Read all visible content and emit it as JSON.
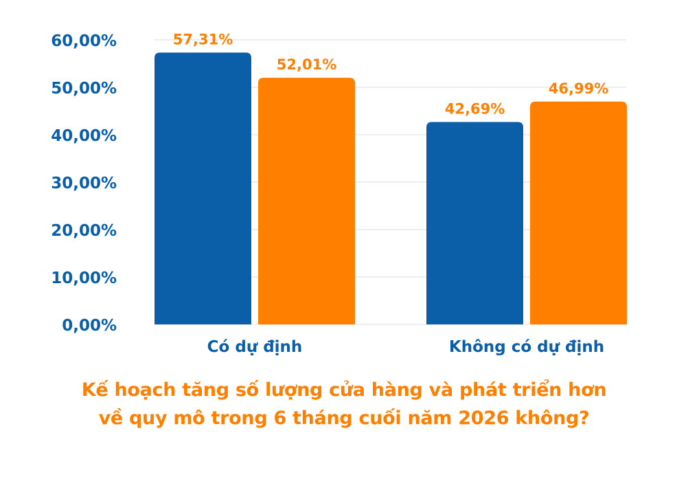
{
  "chart_data": {
    "type": "bar",
    "title_lines": [
      "Kế hoạch tăng số lượng cửa hàng và phát triển hơn",
      "về quy mô trong 6 tháng cuối năm 2026 không?"
    ],
    "xlabel": "",
    "ylabel": "",
    "categories": [
      "Có dự định",
      "Không có dự định"
    ],
    "series": [
      {
        "color": "#0b5ea8",
        "values": [
          57.31,
          42.69
        ],
        "value_labels": [
          "57,31%",
          "42,69%"
        ]
      },
      {
        "color": "#ff7f00",
        "values": [
          52.01,
          46.99
        ],
        "value_labels": [
          "52,01%",
          "46,99%"
        ]
      }
    ],
    "ylim": [
      0,
      60
    ],
    "yticks": [
      0,
      10,
      20,
      30,
      40,
      50,
      60
    ],
    "ytick_labels": [
      "0,00%",
      "10,00%",
      "20,00%",
      "30,00%",
      "40,00%",
      "50,00%",
      "60,00%"
    ],
    "grid": true,
    "legend": false,
    "colors": {
      "axis_text": "#0b5ea8",
      "category_text": "#0b5ea8",
      "title_text": "#ff7f00",
      "grid": "#d9dde3"
    }
  }
}
